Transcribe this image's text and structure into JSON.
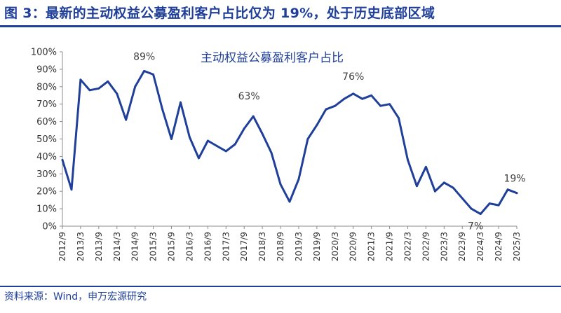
{
  "figure": {
    "title": "图 3：最新的主动权益公募盈利客户占比仅为 19%，处于历史底部区域",
    "source": "资料来源：Wind，申万宏源研究",
    "accent_color": "#1f3f99"
  },
  "chart_data": {
    "type": "line",
    "title": "主动权益公募盈利客户占比",
    "xlabel": "",
    "ylabel": "",
    "ylim": [
      0,
      100
    ],
    "ytick_labels": [
      "0%",
      "10%",
      "20%",
      "30%",
      "40%",
      "50%",
      "60%",
      "70%",
      "80%",
      "90%",
      "100%"
    ],
    "xtick_labels": [
      "2012/9",
      "2013/3",
      "2013/9",
      "2014/3",
      "2014/9",
      "2015/3",
      "2015/9",
      "2016/3",
      "2016/9",
      "2017/3",
      "2017/9",
      "2018/3",
      "2018/9",
      "2019/3",
      "2019/9",
      "2020/3",
      "2020/9",
      "2021/3",
      "2021/9",
      "2022/3",
      "2022/9",
      "2023/3",
      "2023/9",
      "2024/3",
      "2024/9",
      "2025/3"
    ],
    "line_color": "#1f3f99",
    "grid": false,
    "series": [
      {
        "x": [
          "2012/9",
          "2012/12",
          "2013/3",
          "2013/6",
          "2013/9",
          "2013/12",
          "2014/3",
          "2014/6",
          "2014/9",
          "2014/12",
          "2015/3",
          "2015/6",
          "2015/9",
          "2015/12",
          "2016/3",
          "2016/6",
          "2016/9",
          "2016/12",
          "2017/3",
          "2017/6",
          "2017/9",
          "2017/12",
          "2018/3",
          "2018/6",
          "2018/9",
          "2018/12",
          "2019/3",
          "2019/6",
          "2019/9",
          "2019/12",
          "2020/3",
          "2020/6",
          "2020/9",
          "2020/12",
          "2021/3",
          "2021/6",
          "2021/9",
          "2021/12",
          "2022/3",
          "2022/6",
          "2022/9",
          "2022/12",
          "2023/3",
          "2023/6",
          "2023/9",
          "2023/12",
          "2024/3",
          "2024/6",
          "2024/9",
          "2024/12",
          "2025/3"
        ],
        "values": [
          38,
          21,
          84,
          78,
          79,
          83,
          76,
          61,
          80,
          89,
          87,
          67,
          50,
          71,
          51,
          39,
          49,
          46,
          43,
          47,
          56,
          63,
          53,
          42,
          24,
          14,
          27,
          50,
          58,
          67,
          69,
          73,
          76,
          73,
          75,
          69,
          70,
          62,
          38,
          23,
          34,
          20,
          25,
          22,
          16,
          10,
          7,
          13,
          12,
          21,
          19
        ]
      }
    ],
    "annotations": [
      {
        "text": "89%",
        "x": "2014/12",
        "y": 89
      },
      {
        "text": "63%",
        "x": "2017/12",
        "y": 63
      },
      {
        "text": "76%",
        "x": "2020/9",
        "y": 76
      },
      {
        "text": "7%",
        "x": "2024/3",
        "y": 7
      },
      {
        "text": "19%",
        "x": "2025/3",
        "y": 19
      }
    ]
  }
}
